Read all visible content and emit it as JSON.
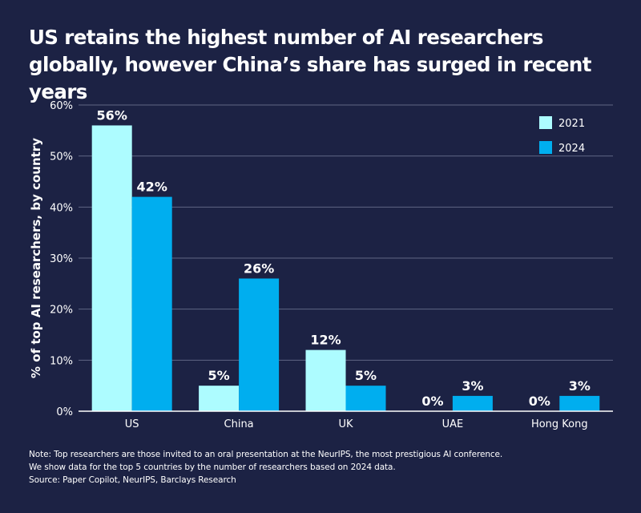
{
  "chart_data": {
    "type": "bar",
    "title": "US retains the highest number of AI researchers globally, however China’s share has surged in recent years",
    "ylabel": "% of top AI researchers, by country",
    "xlabel": "",
    "categories": [
      "US",
      "China",
      "UK",
      "UAE",
      "Hong Kong"
    ],
    "series": [
      {
        "name": "2021",
        "values": [
          56,
          5,
          12,
          0,
          0
        ],
        "labels": [
          "56%",
          "5%",
          "12%",
          "0%",
          "0%"
        ],
        "color": "#adfcff"
      },
      {
        "name": "2024",
        "values": [
          42,
          26,
          5,
          3,
          3
        ],
        "labels": [
          "42%",
          "26%",
          "5%",
          "3%",
          "3%"
        ],
        "color": "#00aeef"
      }
    ],
    "ylim": [
      0,
      60
    ],
    "yticks": [
      "0%",
      "10%",
      "20%",
      "30%",
      "40%",
      "50%",
      "60%"
    ],
    "yticks_values": [
      0,
      10,
      20,
      30,
      40,
      50,
      60
    ],
    "grid": true,
    "legend": "top-right",
    "background": "#1c2244"
  },
  "notes": [
    "Note: Top researchers are those invited to an oral presentation at the NeurIPS, the most prestigious AI conference.",
    "We show data for the top 5 countries by the number of researchers based on 2024 data.",
    "Source: Paper Copilot, NeurIPS, Barclays Research"
  ]
}
